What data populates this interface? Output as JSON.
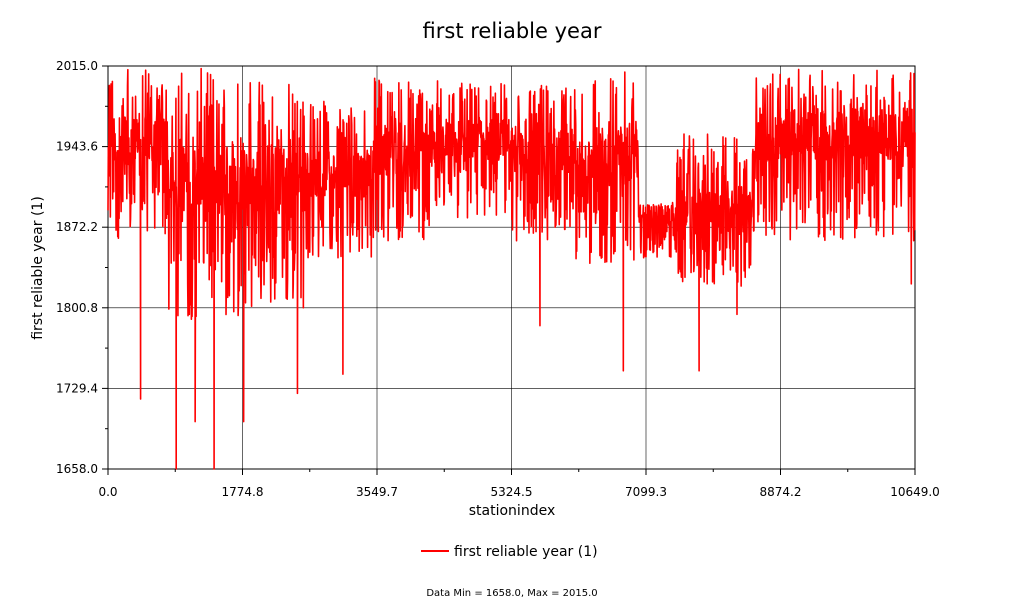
{
  "chart_data": {
    "type": "line",
    "title": "first reliable year",
    "xlabel": "stationindex",
    "ylabel": "first reliable year (1)",
    "xlim": [
      0.0,
      10649.0
    ],
    "ylim": [
      1658.0,
      2015.0
    ],
    "x_ticks": [
      "0.0",
      "1774.8",
      "3549.7",
      "5324.5",
      "7099.3",
      "8874.2",
      "10649.0"
    ],
    "y_ticks": [
      "2015.0",
      "1943.6",
      "1872.2",
      "1800.8",
      "1729.4",
      "1658.0"
    ],
    "grid": true,
    "legend_position": "bottom-center",
    "series": [
      {
        "name": "first reliable year (1)",
        "color": "#ff0000",
        "profile": {
          "segments": [
            {
              "from": 0,
              "to": 800,
              "low": 1862,
              "high": 2012,
              "center": 1950
            },
            {
              "from": 800,
              "to": 1800,
              "low": 1790,
              "high": 2013,
              "center": 1920
            },
            {
              "from": 1800,
              "to": 2600,
              "low": 1800,
              "high": 2005,
              "center": 1915
            },
            {
              "from": 2600,
              "to": 3500,
              "low": 1845,
              "high": 1985,
              "center": 1920
            },
            {
              "from": 3500,
              "to": 4400,
              "low": 1860,
              "high": 2005,
              "center": 1940
            },
            {
              "from": 4400,
              "to": 5300,
              "low": 1880,
              "high": 2000,
              "center": 1950
            },
            {
              "from": 5300,
              "to": 6100,
              "low": 1860,
              "high": 2000,
              "center": 1940
            },
            {
              "from": 6100,
              "to": 7000,
              "low": 1840,
              "high": 2010,
              "center": 1935
            },
            {
              "from": 7000,
              "to": 7500,
              "low": 1845,
              "high": 1895,
              "center": 1885
            },
            {
              "from": 7500,
              "to": 8500,
              "low": 1820,
              "high": 1955,
              "center": 1885
            },
            {
              "from": 8500,
              "to": 10649,
              "low": 1860,
              "high": 2012,
              "center": 1955
            }
          ],
          "spikes": [
            {
              "x": 430,
              "y": 1720
            },
            {
              "x": 900,
              "y": 1658
            },
            {
              "x": 1150,
              "y": 1700
            },
            {
              "x": 1400,
              "y": 1658
            },
            {
              "x": 1790,
              "y": 1700
            },
            {
              "x": 2500,
              "y": 1725
            },
            {
              "x": 3100,
              "y": 1742
            },
            {
              "x": 5700,
              "y": 1785
            },
            {
              "x": 6800,
              "y": 1745
            },
            {
              "x": 7800,
              "y": 1745
            },
            {
              "x": 8300,
              "y": 1795
            },
            {
              "x": 10600,
              "y": 1822
            }
          ]
        }
      }
    ],
    "legend": [
      "first reliable year (1)"
    ],
    "data_range": {
      "min": 1658.0,
      "max": 2015.0
    }
  },
  "footer_text": "Data Min = 1658.0, Max = 2015.0"
}
